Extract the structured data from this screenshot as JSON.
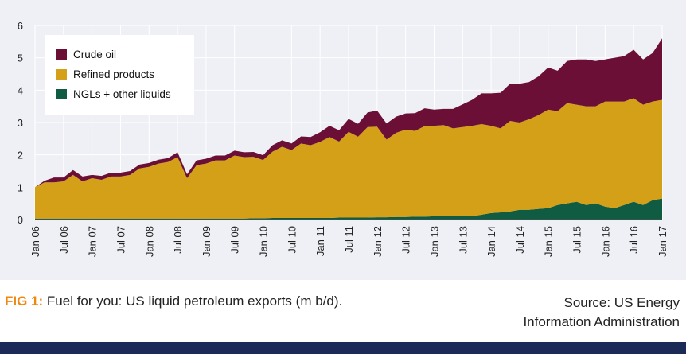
{
  "chart_data": {
    "type": "area",
    "stacked": true,
    "ylim": [
      0,
      6
    ],
    "yticks": [
      0,
      1,
      2,
      3,
      4,
      5,
      6
    ],
    "xticks": [
      "Jan 06",
      "Jul 06",
      "Jan 07",
      "Jul 07",
      "Jan 08",
      "Jul 08",
      "Jan 09",
      "Jul 09",
      "Jan 10",
      "Jul 10",
      "Jan 11",
      "Jul 11",
      "Jan 12",
      "Jul 12",
      "Jan 13",
      "Jul 13",
      "Jan 14",
      "Jul 14",
      "Jan 15",
      "Jul 15",
      "Jan 16",
      "Jul 16",
      "Jan 17"
    ],
    "grid": true,
    "legend_position": "top-left",
    "x": [
      "Jan 06",
      "Mar 06",
      "May 06",
      "Jul 06",
      "Sep 06",
      "Nov 06",
      "Jan 07",
      "Mar 07",
      "May 07",
      "Jul 07",
      "Sep 07",
      "Nov 07",
      "Jan 08",
      "Mar 08",
      "May 08",
      "Jul 08",
      "Sep 08",
      "Nov 08",
      "Jan 09",
      "Mar 09",
      "May 09",
      "Jul 09",
      "Sep 09",
      "Nov 09",
      "Jan 10",
      "Mar 10",
      "May 10",
      "Jul 10",
      "Sep 10",
      "Nov 10",
      "Jan 11",
      "Mar 11",
      "May 11",
      "Jul 11",
      "Sep 11",
      "Nov 11",
      "Jan 12",
      "Mar 12",
      "May 12",
      "Jul 12",
      "Sep 12",
      "Nov 12",
      "Jan 13",
      "Mar 13",
      "May 13",
      "Jul 13",
      "Sep 13",
      "Nov 13",
      "Jan 14",
      "Mar 14",
      "May 14",
      "Jul 14",
      "Sep 14",
      "Nov 14",
      "Jan 15",
      "Mar 15",
      "May 15",
      "Jul 15",
      "Sep 15",
      "Nov 15",
      "Jan 16",
      "Mar 16",
      "May 16",
      "Jul 16",
      "Sep 16",
      "Nov 16",
      "Jan 17"
    ],
    "series": [
      {
        "name": "NGLs + other liquids",
        "color": "#0f5c43",
        "values": [
          0.03,
          0.03,
          0.03,
          0.03,
          0.03,
          0.03,
          0.03,
          0.03,
          0.03,
          0.03,
          0.03,
          0.03,
          0.03,
          0.03,
          0.03,
          0.03,
          0.03,
          0.03,
          0.03,
          0.03,
          0.03,
          0.03,
          0.03,
          0.04,
          0.04,
          0.05,
          0.05,
          0.05,
          0.05,
          0.05,
          0.05,
          0.05,
          0.06,
          0.06,
          0.06,
          0.06,
          0.07,
          0.07,
          0.08,
          0.08,
          0.09,
          0.09,
          0.1,
          0.12,
          0.12,
          0.11,
          0.1,
          0.15,
          0.2,
          0.22,
          0.25,
          0.3,
          0.3,
          0.33,
          0.35,
          0.45,
          0.5,
          0.55,
          0.45,
          0.5,
          0.4,
          0.35,
          0.45,
          0.55,
          0.45,
          0.6,
          0.65
        ]
      },
      {
        "name": "Refined products",
        "color": "#d4a017",
        "values": [
          0.97,
          1.12,
          1.12,
          1.15,
          1.35,
          1.15,
          1.25,
          1.2,
          1.3,
          1.3,
          1.35,
          1.55,
          1.6,
          1.7,
          1.75,
          1.9,
          1.25,
          1.65,
          1.7,
          1.8,
          1.8,
          1.95,
          1.9,
          1.9,
          1.8,
          2.05,
          2.2,
          2.1,
          2.3,
          2.25,
          2.35,
          2.5,
          2.35,
          2.65,
          2.5,
          2.8,
          2.8,
          2.4,
          2.6,
          2.7,
          2.65,
          2.8,
          2.8,
          2.8,
          2.7,
          2.75,
          2.8,
          2.8,
          2.7,
          2.6,
          2.8,
          2.7,
          2.8,
          2.9,
          3.05,
          2.9,
          3.1,
          3.0,
          3.05,
          3.0,
          3.25,
          3.3,
          3.2,
          3.2,
          3.1,
          3.05,
          3.05
        ]
      },
      {
        "name": "Crude oil",
        "color": "#6b0f36",
        "values": [
          0.0,
          0.05,
          0.15,
          0.12,
          0.15,
          0.15,
          0.1,
          0.12,
          0.12,
          0.12,
          0.12,
          0.12,
          0.12,
          0.12,
          0.12,
          0.15,
          0.12,
          0.15,
          0.15,
          0.15,
          0.15,
          0.15,
          0.15,
          0.15,
          0.15,
          0.2,
          0.2,
          0.2,
          0.22,
          0.25,
          0.3,
          0.35,
          0.35,
          0.4,
          0.4,
          0.45,
          0.5,
          0.5,
          0.5,
          0.5,
          0.55,
          0.55,
          0.5,
          0.5,
          0.6,
          0.7,
          0.8,
          0.95,
          1.0,
          1.1,
          1.15,
          1.2,
          1.15,
          1.2,
          1.3,
          1.25,
          1.3,
          1.4,
          1.45,
          1.4,
          1.3,
          1.35,
          1.4,
          1.5,
          1.4,
          1.5,
          1.9
        ]
      }
    ]
  },
  "legend": [
    {
      "label": "Crude oil",
      "color": "#6b0f36"
    },
    {
      "label": "Refined products",
      "color": "#d4a017"
    },
    {
      "label": "NGLs + other liquids",
      "color": "#0f5c43"
    }
  ],
  "caption": {
    "fig_label": "FIG 1:",
    "text": " Fuel for you: US liquid petroleum exports (m b/d)."
  },
  "source": {
    "line1": "Source: US Energy",
    "line2": "Information Administration"
  },
  "colors": {
    "panel_bg": "#eef0f5",
    "grid": "#ffffff",
    "fig_label": "#f2870f",
    "footer_bar": "#1b2a57"
  }
}
